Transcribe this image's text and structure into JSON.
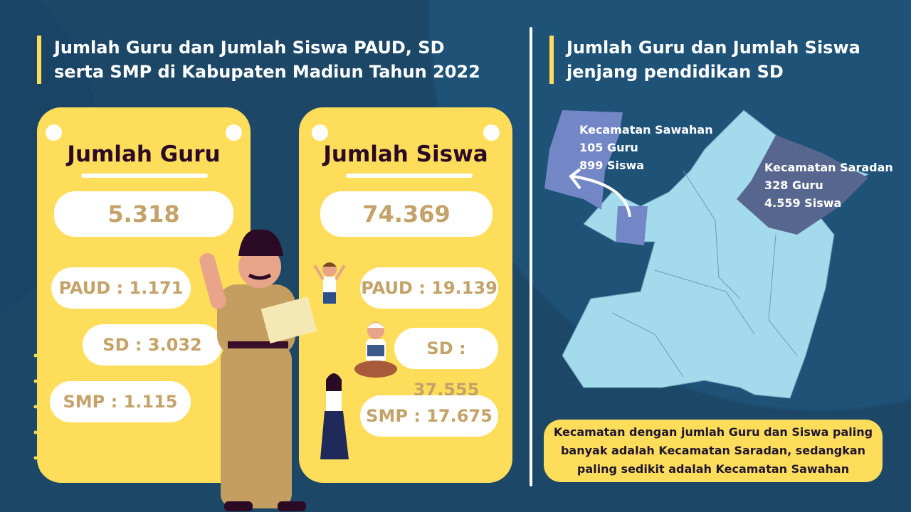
{
  "left_title": "Jumlah Guru dan Jumlah Siswa PAUD, SD serta SMP di Kabupaten Madiun Tahun 2022",
  "right_title": "Jumlah Guru dan Jumlah Siswa jenjang pendidikan SD",
  "guru": {
    "heading": "Jumlah Guru",
    "total": "5.318",
    "paud": "PAUD : 1.171",
    "sd": "SD : 3.032",
    "smp": "SMP : 1.115"
  },
  "siswa": {
    "heading": "Jumlah Siswa",
    "total": "74.369",
    "paud": "PAUD : 19.139",
    "sd": "SD : 37.555",
    "smp": "SMP : 17.675"
  },
  "map": {
    "sawahan": {
      "name": "Kecamatan Sawahan",
      "guru": "105 Guru",
      "siswa": "899 Siswa",
      "color": "#7387c6"
    },
    "saradan": {
      "name": "Kecamatan Saradan",
      "guru": "328 Guru",
      "siswa": "4.559 Siswa",
      "color": "#56668f"
    },
    "base_color": "#a3dbec"
  },
  "note": "Kecamatan dengan jumlah Guru dan Siswa paling banyak adalah Kecamatan Saradan, sedangkan paling sedikit adalah Kecamatan Sawahan",
  "colors": {
    "background": "#1c4767",
    "card": "#fedd5a",
    "accent": "#fddc5a",
    "number": "#c4a36a"
  }
}
